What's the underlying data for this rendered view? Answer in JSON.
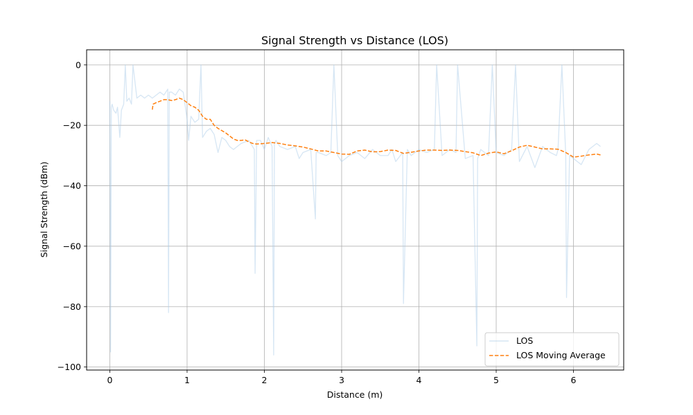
{
  "chart_data": {
    "type": "line",
    "title": "Signal Strength vs Distance (LOS)",
    "xlabel": "Distance (m)",
    "ylabel": "Signal Strength (dBm)",
    "xlim": [
      -0.3,
      6.65
    ],
    "ylim": [
      -101,
      5
    ],
    "xticks": [
      0,
      1,
      2,
      3,
      4,
      5,
      6
    ],
    "yticks": [
      0,
      -20,
      -40,
      -60,
      -80,
      -100
    ],
    "xtick_labels": [
      "0",
      "1",
      "2",
      "3",
      "4",
      "5",
      "6"
    ],
    "ytick_labels": [
      "0",
      "−20",
      "−40",
      "−60",
      "−80",
      "−100"
    ],
    "grid": true,
    "legend_position": "lower-right",
    "series": [
      {
        "name": "LOS",
        "color": "#aecde9",
        "style": "solid",
        "x": [
          0.0,
          0.01,
          0.015,
          0.02,
          0.03,
          0.05,
          0.08,
          0.1,
          0.13,
          0.15,
          0.18,
          0.2,
          0.22,
          0.25,
          0.28,
          0.3,
          0.35,
          0.4,
          0.45,
          0.5,
          0.55,
          0.6,
          0.65,
          0.7,
          0.75,
          0.76,
          0.77,
          0.8,
          0.85,
          0.9,
          0.95,
          1.0,
          1.02,
          1.05,
          1.1,
          1.15,
          1.18,
          1.2,
          1.25,
          1.3,
          1.35,
          1.4,
          1.45,
          1.5,
          1.55,
          1.6,
          1.7,
          1.8,
          1.87,
          1.88,
          1.9,
          1.95,
          2.0,
          2.05,
          2.1,
          2.12,
          2.13,
          2.15,
          2.2,
          2.3,
          2.4,
          2.45,
          2.5,
          2.6,
          2.66,
          2.67,
          2.7,
          2.8,
          2.86,
          2.9,
          2.95,
          3.0,
          3.1,
          3.2,
          3.3,
          3.4,
          3.5,
          3.6,
          3.65,
          3.7,
          3.79,
          3.8,
          3.85,
          3.9,
          4.0,
          4.1,
          4.2,
          4.23,
          4.3,
          4.4,
          4.48,
          4.5,
          4.6,
          4.7,
          4.75,
          4.76,
          4.8,
          4.9,
          4.95,
          5.0,
          5.1,
          5.2,
          5.25,
          5.3,
          5.4,
          5.5,
          5.6,
          5.7,
          5.78,
          5.8,
          5.85,
          5.9,
          5.91,
          5.95,
          6.0,
          6.1,
          6.2,
          6.3,
          6.35
        ],
        "y": [
          -12,
          -95,
          -60,
          -14,
          -13,
          -15,
          -16,
          -14,
          -24,
          -15,
          -13,
          0,
          -12,
          -11,
          -13,
          0,
          -11,
          -10,
          -11,
          -10,
          -11,
          -10,
          -9,
          -10,
          -8,
          -82,
          -9,
          -9,
          -10,
          -8,
          -9,
          -18,
          -25,
          -17,
          -19,
          -18,
          0,
          -24,
          -22,
          -21,
          -23,
          -29,
          -24,
          -25,
          -27,
          -28,
          -26,
          -25,
          -28,
          -69,
          -25,
          -25,
          -28,
          -24,
          -27,
          -96,
          -26,
          -25,
          -27,
          -28,
          -27,
          -31,
          -29,
          -28,
          -51,
          -29,
          -29,
          -30,
          -29,
          0,
          -30,
          -32,
          -30,
          -29,
          -31,
          -28,
          -30,
          -30,
          -28,
          -32,
          -29,
          -79,
          -28,
          -30,
          -28,
          -29,
          -28,
          0,
          -30,
          -28,
          -29,
          0,
          -31,
          -30,
          -93,
          -31,
          -28,
          -30,
          0,
          -29,
          -30,
          -28,
          0,
          -32,
          -27,
          -34,
          -27,
          -29,
          -30,
          -28,
          0,
          -30,
          -77,
          -30,
          -31,
          -33,
          -28,
          -26,
          -27
        ],
        "legend_label": "LOS"
      },
      {
        "name": "LOS Moving Average",
        "color": "#ff7f0e",
        "style": "dashed",
        "x": [
          0.55,
          0.56,
          0.6,
          0.65,
          0.7,
          0.75,
          0.8,
          0.85,
          0.9,
          0.95,
          1.0,
          1.05,
          1.1,
          1.15,
          1.2,
          1.25,
          1.3,
          1.35,
          1.4,
          1.5,
          1.6,
          1.65,
          1.7,
          1.75,
          1.8,
          1.85,
          1.9,
          2.0,
          2.1,
          2.2,
          2.3,
          2.4,
          2.5,
          2.6,
          2.7,
          2.8,
          2.9,
          3.0,
          3.1,
          3.2,
          3.3,
          3.4,
          3.5,
          3.6,
          3.7,
          3.8,
          3.9,
          4.0,
          4.1,
          4.2,
          4.3,
          4.4,
          4.5,
          4.6,
          4.7,
          4.8,
          4.9,
          5.0,
          5.1,
          5.2,
          5.3,
          5.4,
          5.5,
          5.6,
          5.7,
          5.8,
          5.9,
          6.0,
          6.1,
          6.2,
          6.3,
          6.35
        ],
        "y": [
          -14.8,
          -13,
          -12.5,
          -12,
          -11.5,
          -11.5,
          -11.8,
          -11.5,
          -11,
          -11.5,
          -12.5,
          -13.5,
          -14,
          -15,
          -17,
          -18,
          -18,
          -20,
          -21,
          -22.5,
          -24.5,
          -25,
          -25,
          -24.8,
          -25.5,
          -26,
          -26.2,
          -26,
          -25.7,
          -26,
          -26.5,
          -26.8,
          -27.2,
          -27.8,
          -28.5,
          -28.5,
          -29,
          -29.5,
          -29.6,
          -28.5,
          -28.2,
          -28.8,
          -28.7,
          -28.2,
          -28.3,
          -29.3,
          -28.9,
          -28.5,
          -28.2,
          -28.2,
          -28.3,
          -28.2,
          -28.3,
          -28.7,
          -29.1,
          -30,
          -29.2,
          -28.8,
          -29.4,
          -28.4,
          -27.2,
          -26.6,
          -27.2,
          -27.8,
          -27.8,
          -27.9,
          -29,
          -30.5,
          -30.2,
          -29.8,
          -29.5,
          -29.8
        ],
        "legend_label": "LOS Moving Average"
      }
    ]
  }
}
